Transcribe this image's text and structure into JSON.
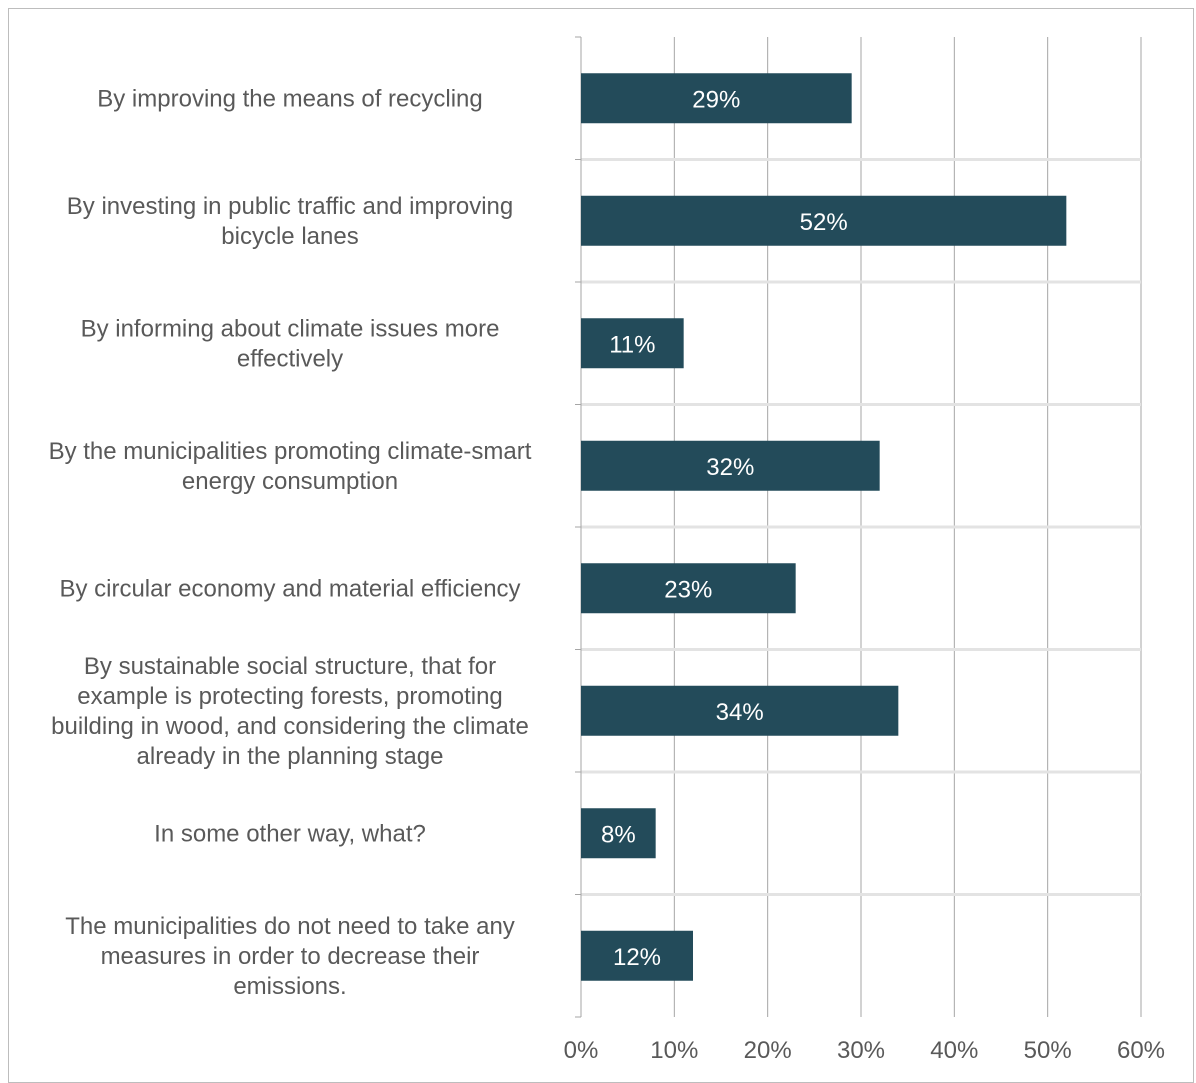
{
  "chart_data": {
    "type": "bar",
    "orientation": "horizontal",
    "categories": [
      [
        "By improving the means of recycling"
      ],
      [
        "By investing in public traffic and improving",
        "bicycle lanes"
      ],
      [
        "By informing about climate issues more",
        "effectively"
      ],
      [
        "By the municipalities promoting climate-smart",
        "energy consumption"
      ],
      [
        "By circular economy and material efficiency"
      ],
      [
        "By sustainable social structure, that for",
        "example is protecting forests, promoting",
        "building in wood, and considering the climate",
        "already in the planning stage"
      ],
      [
        "In some other way, what?"
      ],
      [
        "The municipalities do not need to take any",
        "measures in order to decrease their",
        "emissions."
      ]
    ],
    "values": [
      29,
      52,
      11,
      32,
      23,
      34,
      8,
      12
    ],
    "data_labels": [
      "29%",
      "52%",
      "11%",
      "32%",
      "23%",
      "34%",
      "8%",
      "12%"
    ],
    "x_ticks": [
      "0%",
      "10%",
      "20%",
      "30%",
      "40%",
      "50%",
      "60%"
    ],
    "xlim": [
      0,
      60
    ],
    "grid": "vertical",
    "legend": "none",
    "bar_color": "#234b5a",
    "title": "",
    "xlabel": "",
    "ylabel": ""
  }
}
